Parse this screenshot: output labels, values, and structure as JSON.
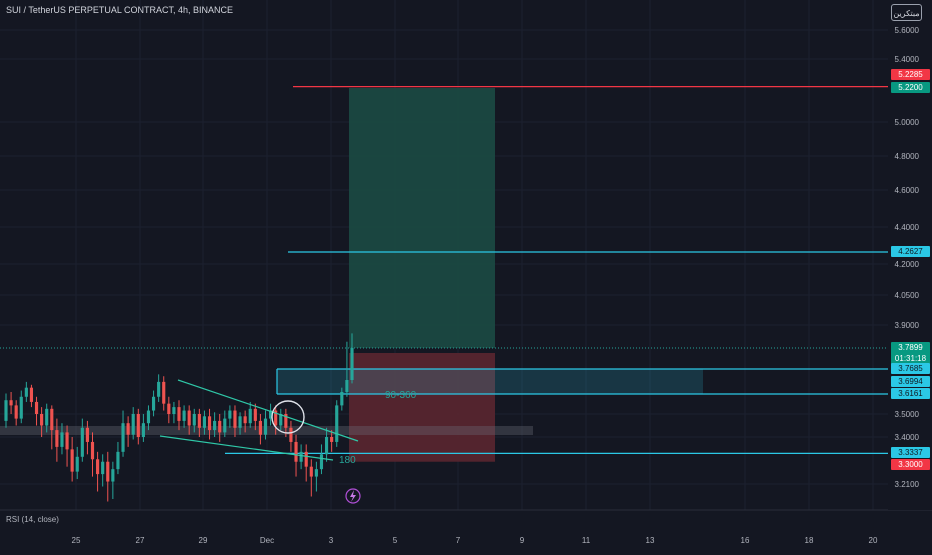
{
  "header": {
    "title": "SUI / TetherUS PERPETUAL CONTRACT, 4h, BINANCE",
    "brand": "مبتكرين"
  },
  "indicator": {
    "label": "RSI (14, close)"
  },
  "annotations": {
    "range_label": "90-360",
    "count_label": "180"
  },
  "colors": {
    "background": "#141722",
    "bull": "#26a69a",
    "bear": "#ef5350",
    "line_cyan": "#2bc8e6",
    "line_red": "#f23645",
    "target_zone": "#1b4a44",
    "stop_zone": "#5a2630",
    "label_green": "#089981",
    "label_red": "#f23645",
    "label_cyan": "#2bc8e6"
  },
  "chart_data": {
    "type": "candlestick",
    "y_axis_ticks": [
      "5.6000",
      "5.4000",
      "5.0000",
      "4.8000",
      "4.6000",
      "4.4000",
      "4.2000",
      "4.0500",
      "3.9000",
      "3.5000",
      "3.4000",
      "3.2100"
    ],
    "x_axis_ticks": [
      "25",
      "27",
      "29",
      "Dec",
      "3",
      "5",
      "7",
      "9",
      "11",
      "13",
      "16",
      "18",
      "20"
    ],
    "price_labels": [
      {
        "text": "5.2285",
        "color": "label_red"
      },
      {
        "text": "5.2200",
        "color": "label_green"
      },
      {
        "text": "4.2627",
        "color": "label_cyan"
      },
      {
        "text": "3.7899",
        "color": "label_green",
        "sub": "01:31:18"
      },
      {
        "text": "3.7685",
        "color": "label_cyan"
      },
      {
        "text": "3.6994",
        "color": "label_cyan"
      },
      {
        "text": "3.6161",
        "color": "label_cyan"
      },
      {
        "text": "3.3337",
        "color": "label_cyan"
      },
      {
        "text": "3.3000",
        "color": "label_red"
      }
    ],
    "levels": {
      "red_line": 5.2285,
      "cyan_high": 4.2627,
      "zone_top": 3.7685,
      "zone_mid": 3.6994,
      "zone_low": 3.6161,
      "cyan_low": 3.3337
    },
    "position": {
      "entry": 3.7899,
      "target": 5.22,
      "stop": 3.3
    },
    "candles": [
      [
        3.47,
        3.58,
        3.62,
        3.44
      ],
      [
        3.58,
        3.55,
        3.63,
        3.5
      ],
      [
        3.55,
        3.48,
        3.58,
        3.45
      ],
      [
        3.48,
        3.6,
        3.64,
        3.46
      ],
      [
        3.6,
        3.66,
        3.7,
        3.57
      ],
      [
        3.66,
        3.57,
        3.68,
        3.54
      ],
      [
        3.57,
        3.5,
        3.6,
        3.45
      ],
      [
        3.5,
        3.45,
        3.54,
        3.4
      ],
      [
        3.45,
        3.53,
        3.56,
        3.42
      ],
      [
        3.53,
        3.43,
        3.55,
        3.35
      ],
      [
        3.43,
        3.36,
        3.48,
        3.3
      ],
      [
        3.36,
        3.42,
        3.46,
        3.33
      ],
      [
        3.42,
        3.35,
        3.45,
        3.28
      ],
      [
        3.35,
        3.26,
        3.4,
        3.22
      ],
      [
        3.26,
        3.32,
        3.36,
        3.23
      ],
      [
        3.32,
        3.44,
        3.48,
        3.3
      ],
      [
        3.44,
        3.38,
        3.47,
        3.33
      ],
      [
        3.38,
        3.31,
        3.42,
        3.24
      ],
      [
        3.31,
        3.25,
        3.34,
        3.18
      ],
      [
        3.25,
        3.3,
        3.33,
        3.2
      ],
      [
        3.3,
        3.22,
        3.34,
        3.14
      ],
      [
        3.22,
        3.27,
        3.3,
        3.15
      ],
      [
        3.27,
        3.34,
        3.38,
        3.25
      ],
      [
        3.34,
        3.46,
        3.52,
        3.32
      ],
      [
        3.46,
        3.41,
        3.49,
        3.36
      ],
      [
        3.41,
        3.5,
        3.54,
        3.39
      ],
      [
        3.5,
        3.4,
        3.53,
        3.37
      ],
      [
        3.4,
        3.46,
        3.5,
        3.38
      ],
      [
        3.46,
        3.52,
        3.55,
        3.43
      ],
      [
        3.52,
        3.6,
        3.64,
        3.49
      ],
      [
        3.6,
        3.7,
        3.74,
        3.57
      ],
      [
        3.7,
        3.56,
        3.73,
        3.52
      ],
      [
        3.56,
        3.5,
        3.6,
        3.46
      ],
      [
        3.5,
        3.54,
        3.57,
        3.46
      ],
      [
        3.54,
        3.47,
        3.58,
        3.43
      ],
      [
        3.47,
        3.52,
        3.55,
        3.44
      ],
      [
        3.52,
        3.45,
        3.55,
        3.41
      ],
      [
        3.45,
        3.5,
        3.53,
        3.42
      ],
      [
        3.5,
        3.44,
        3.53,
        3.4
      ],
      [
        3.44,
        3.49,
        3.52,
        3.41
      ],
      [
        3.49,
        3.43,
        3.53,
        3.39
      ],
      [
        3.43,
        3.47,
        3.51,
        3.4
      ],
      [
        3.47,
        3.42,
        3.5,
        3.38
      ],
      [
        3.42,
        3.48,
        3.52,
        3.4
      ],
      [
        3.48,
        3.52,
        3.55,
        3.44
      ],
      [
        3.52,
        3.44,
        3.55,
        3.4
      ],
      [
        3.44,
        3.49,
        3.51,
        3.41
      ],
      [
        3.49,
        3.46,
        3.52,
        3.42
      ],
      [
        3.46,
        3.53,
        3.57,
        3.44
      ],
      [
        3.53,
        3.47,
        3.56,
        3.43
      ],
      [
        3.47,
        3.41,
        3.5,
        3.37
      ],
      [
        3.41,
        3.48,
        3.52,
        3.39
      ],
      [
        3.48,
        3.52,
        3.56,
        3.45
      ],
      [
        3.52,
        3.45,
        3.55,
        3.41
      ],
      [
        3.45,
        3.5,
        3.53,
        3.43
      ],
      [
        3.5,
        3.44,
        3.53,
        3.4
      ],
      [
        3.44,
        3.38,
        3.47,
        3.34
      ],
      [
        3.38,
        3.3,
        3.41,
        3.24
      ],
      [
        3.3,
        3.34,
        3.37,
        3.27
      ],
      [
        3.34,
        3.28,
        3.37,
        3.22
      ],
      [
        3.28,
        3.24,
        3.31,
        3.16
      ],
      [
        3.24,
        3.27,
        3.3,
        3.18
      ],
      [
        3.27,
        3.33,
        3.37,
        3.25
      ],
      [
        3.33,
        3.4,
        3.44,
        3.3
      ],
      [
        3.4,
        3.38,
        3.43,
        3.34
      ],
      [
        3.38,
        3.55,
        3.58,
        3.36
      ],
      [
        3.55,
        3.63,
        3.66,
        3.52
      ],
      [
        3.63,
        3.71,
        3.82,
        3.6
      ],
      [
        3.71,
        3.79,
        3.86,
        3.69
      ]
    ]
  }
}
